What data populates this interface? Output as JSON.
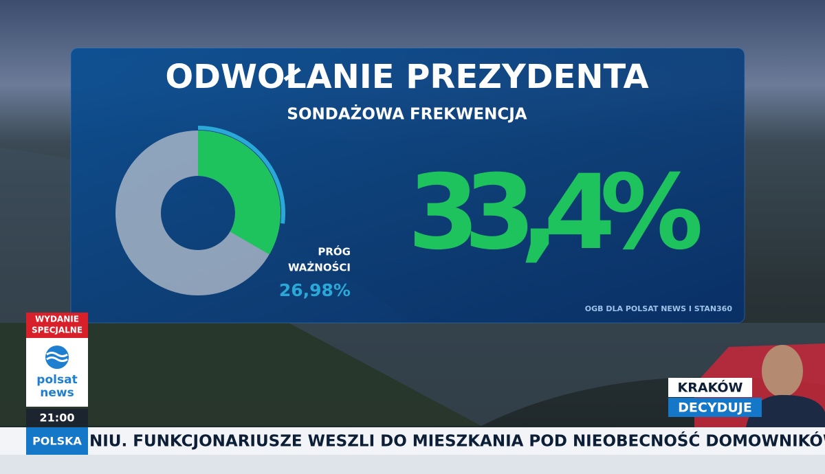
{
  "header": {
    "title": "ODWOŁANIE PREZYDENTA",
    "subtitle": "SONDAŻOWA FREKWENCJA"
  },
  "turnout": {
    "value": 33.4,
    "label": "33,4%",
    "color": "#1fc35e"
  },
  "threshold": {
    "lines": [
      "PRÓG",
      "WAŻNOŚCI"
    ],
    "value": 26.98,
    "label": "26,98%",
    "color": "#2aa8d8"
  },
  "source": "OGB DLA POLSAT NEWS I STAN360",
  "sidebar": {
    "badge": [
      "WYDANIE",
      "SPECJALNE"
    ],
    "logo": [
      "polsat",
      "news"
    ],
    "time": "21:00",
    "section": "POLSKA"
  },
  "ticker": "NIU. FUNKCJONARIUSZE WESZLI DO MIESZKANIA POD NIEOBECNOŚĆ DOMOWNIKÓW. SZEF RZĄDU",
  "banner": [
    "KRAKÓW",
    "DECYDUJE"
  ]
}
